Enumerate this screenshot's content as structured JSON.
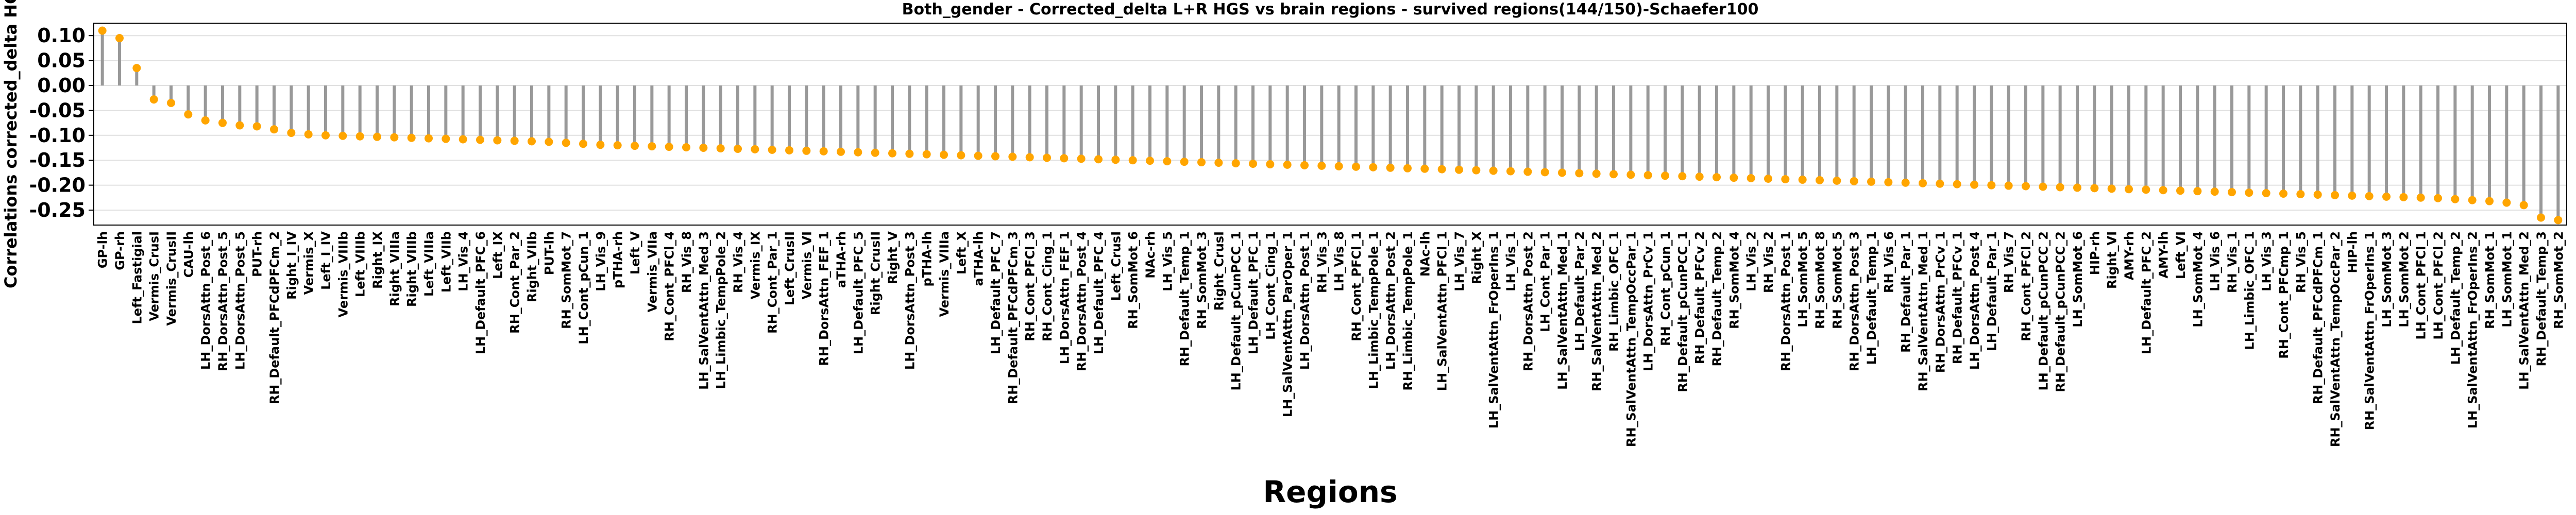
{
  "chart_data": {
    "type": "lollipop",
    "title": "Both_gender - Corrected_delta L+R HGS vs brain regions - survived regions(144/150)-Schaefer100",
    "x_label": "Regions",
    "y_label": "Correlations corrected_delta HGS vs brain regions",
    "color": "#ffa500",
    "stem_color": "#999999",
    "grid": true,
    "ylim": [
      -0.28,
      0.125
    ],
    "yticks": [
      {
        "value": 0.1,
        "label": "0.10"
      },
      0.05,
      {
        "value": 0,
        "label": "0.00"
      },
      -0.05,
      {
        "value": -0.1,
        "label": "-0.10"
      },
      -0.15,
      {
        "value": -0.2,
        "label": "-0.20"
      },
      -0.25
    ],
    "categories": [
      "GP-lh",
      "GP-rh",
      "Left_Fastigial",
      "Vermis_CrusI",
      "Vermis_CrusII",
      "CAU-lh",
      "LH_DorsAttn_Post_6",
      "RH_DorsAttn_Post_5",
      "LH_DorsAttn_Post_5",
      "PUT-rh",
      "RH_Default_PFCdPFCm_2",
      "Right_I_IV",
      "Vermis_X",
      "Left_I_IV",
      "Vermis_VIIIb",
      "Left_VIIIb",
      "Right_IX",
      "Right_VIIIa",
      "Right_VIIIb",
      "Left_VIIIa",
      "Left_VIIb",
      "LH_Vis_4",
      "LH_Default_PFC_6",
      "Left_IX",
      "RH_Cont_Par_2",
      "Right_VIIb",
      "PUT-lh",
      "RH_SomMot_7",
      "LH_Cont_pCun_1",
      "LH_Vis_9",
      "pTHA-rh",
      "Left_V",
      "Vermis_VIIa",
      "RH_Cont_PFCl_4",
      "RH_Vis_8",
      "LH_SalVentAttn_Med_3",
      "LH_Limbic_TempPole_2",
      "RH_Vis_4",
      "Vermis_IX",
      "RH_Cont_Par_1",
      "Left_CrusII",
      "Vermis_VI",
      "RH_DorsAttn_FEF_1",
      "aTHA-rh",
      "LH_Default_PFC_5",
      "Right_CrusII",
      "Right_V",
      "LH_DorsAttn_Post_3",
      "pTHA-lh",
      "Vermis_VIIIa",
      "Left_X",
      "aTHA-lh",
      "LH_Default_PFC_7",
      "RH_Default_PFCdPFCm_3",
      "RH_Cont_PFCl_3",
      "RH_Cont_Cing_1",
      "LH_DorsAttn_FEF_1",
      "RH_DorsAttn_Post_4",
      "LH_Default_PFC_4",
      "Left_CrusI",
      "RH_SomMot_6",
      "NAc-rh",
      "LH_Vis_5",
      "RH_Default_Temp_1",
      "RH_SomMot_3",
      "Right_CrusI",
      "LH_Default_pCunPCC_1",
      "LH_Default_PFC_1",
      "LH_Cont_Cing_1",
      "LH_SalVentAttn_ParOper_1",
      "LH_DorsAttn_Post_1",
      "RH_Vis_3",
      "LH_Vis_8",
      "RH_Cont_PFCl_1",
      "LH_Limbic_TempPole_1",
      "LH_DorsAttn_Post_2",
      "RH_Limbic_TempPole_1",
      "NAc-lh",
      "LH_SalVentAttn_PFCl_1",
      "LH_Vis_7",
      "Right_X",
      "LH_SalVentAttn_FrOperIns_1",
      "LH_Vis_1",
      "RH_DorsAttn_Post_2",
      "LH_Cont_Par_1",
      "LH_SalVentAttn_Med_1",
      "LH_Default_Par_2",
      "RH_SalVentAttn_Med_2",
      "RH_Limbic_OFC_1",
      "RH_SalVentAttn_TempOccPar_1",
      "LH_DorsAttn_PrCv_1",
      "RH_Cont_pCun_1",
      "RH_Default_pCunPCC_1",
      "RH_Default_PFCv_2",
      "RH_Default_Temp_2",
      "RH_SomMot_4",
      "LH_Vis_2",
      "RH_Vis_2",
      "RH_DorsAttn_Post_1",
      "LH_SomMot_5",
      "RH_SomMot_8",
      "RH_SomMot_5",
      "RH_DorsAttn_Post_3",
      "LH_Default_Temp_1",
      "RH_Vis_6",
      "RH_Default_Par_1",
      "RH_SalVentAttn_Med_1",
      "RH_DorsAttn_PrCv_1",
      "RH_Default_PFCv_1",
      "LH_DorsAttn_Post_4",
      "LH_Default_Par_1",
      "RH_Vis_7",
      "RH_Cont_PFCl_2",
      "LH_Default_pCunPCC_2",
      "RH_Default_pCunPCC_2",
      "LH_SomMot_6",
      "HIP-rh",
      "Right_VI",
      "AMY-rh",
      "LH_Default_PFC_2",
      "AMY-lh",
      "Left_VI",
      "LH_SomMot_4",
      "LH_Vis_6",
      "RH_Vis_1",
      "LH_Limbic_OFC_1",
      "LH_Vis_3",
      "RH_Cont_PFCmp_1",
      "RH_Vis_5",
      "RH_Default_PFCdPFCm_1",
      "RH_SalVentAttn_TempOccPar_2",
      "HIP-lh",
      "RH_SalVentAttn_FrOperIns_1",
      "LH_SomMot_3",
      "LH_SomMot_2",
      "LH_Cont_PFCl_1",
      "LH_Cont_PFCl_2",
      "LH_Default_Temp_2",
      "LH_SalVentAttn_FrOperIns_2",
      "RH_SomMot_1",
      "LH_SomMot_1",
      "LH_SalVentAttn_Med_2",
      "RH_Default_Temp_3",
      "RH_SomMot_2"
    ],
    "values": [
      0.11,
      0.095,
      0.035,
      -0.028,
      -0.035,
      -0.058,
      -0.07,
      -0.075,
      -0.08,
      -0.082,
      -0.088,
      -0.095,
      -0.098,
      -0.1,
      -0.101,
      -0.102,
      -0.103,
      -0.104,
      -0.105,
      -0.106,
      -0.107,
      -0.108,
      -0.109,
      -0.11,
      -0.111,
      -0.112,
      -0.113,
      -0.115,
      -0.117,
      -0.119,
      -0.12,
      -0.121,
      -0.122,
      -0.123,
      -0.124,
      -0.125,
      -0.126,
      -0.127,
      -0.128,
      -0.129,
      -0.13,
      -0.131,
      -0.132,
      -0.133,
      -0.134,
      -0.135,
      -0.136,
      -0.137,
      -0.138,
      -0.139,
      -0.14,
      -0.141,
      -0.142,
      -0.143,
      -0.144,
      -0.145,
      -0.146,
      -0.147,
      -0.148,
      -0.149,
      -0.15,
      -0.151,
      -0.152,
      -0.153,
      -0.154,
      -0.155,
      -0.156,
      -0.157,
      -0.158,
      -0.159,
      -0.16,
      -0.161,
      -0.162,
      -0.163,
      -0.164,
      -0.165,
      -0.166,
      -0.167,
      -0.168,
      -0.169,
      -0.17,
      -0.171,
      -0.172,
      -0.173,
      -0.174,
      -0.175,
      -0.176,
      -0.177,
      -0.178,
      -0.179,
      -0.18,
      -0.181,
      -0.182,
      -0.183,
      -0.184,
      -0.185,
      -0.186,
      -0.187,
      -0.188,
      -0.189,
      -0.19,
      -0.191,
      -0.192,
      -0.193,
      -0.194,
      -0.195,
      -0.196,
      -0.197,
      -0.198,
      -0.199,
      -0.2,
      -0.201,
      -0.202,
      -0.203,
      -0.204,
      -0.205,
      -0.206,
      -0.207,
      -0.208,
      -0.209,
      -0.21,
      -0.211,
      -0.212,
      -0.213,
      -0.214,
      -0.215,
      -0.216,
      -0.217,
      -0.218,
      -0.219,
      -0.22,
      -0.221,
      -0.222,
      -0.223,
      -0.224,
      -0.225,
      -0.226,
      -0.228,
      -0.23,
      -0.232,
      -0.235,
      -0.24,
      -0.265,
      -0.27
    ]
  }
}
